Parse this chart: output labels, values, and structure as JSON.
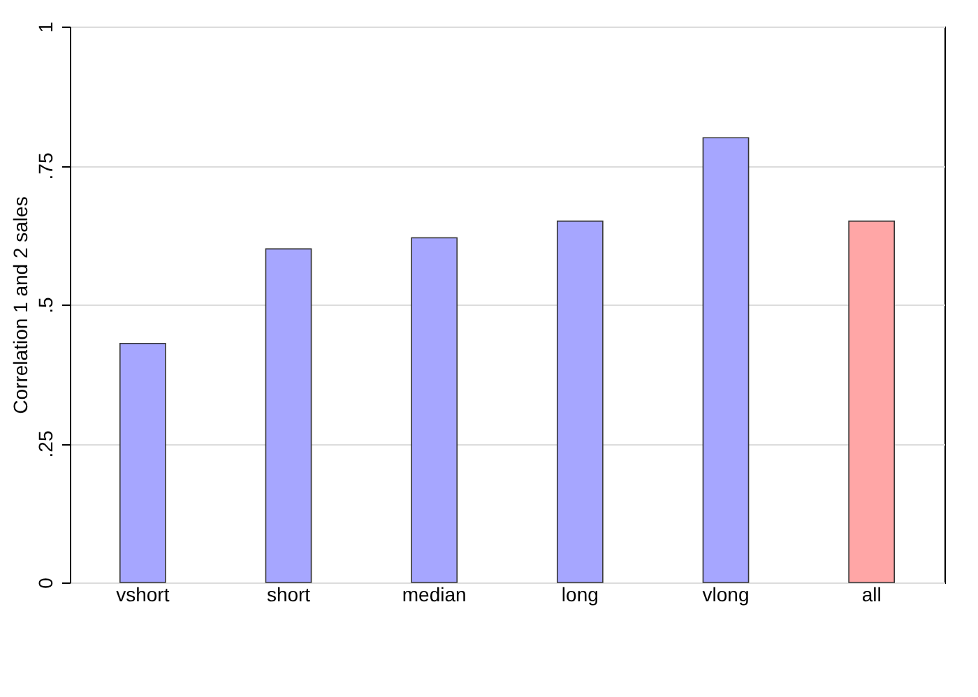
{
  "chart_data": {
    "type": "bar",
    "ylabel": "Correlation 1 and 2 sales",
    "categories": [
      "vshort",
      "short",
      "median",
      "long",
      "vlong",
      "all"
    ],
    "values": [
      0.43,
      0.6,
      0.62,
      0.65,
      0.8,
      0.65
    ],
    "colors": [
      "#a6a6ff",
      "#a6a6ff",
      "#a6a6ff",
      "#a6a6ff",
      "#a6a6ff",
      "#ffa6a6"
    ],
    "ylim": [
      0,
      1
    ],
    "yticks": [
      {
        "value": 0,
        "label": "0"
      },
      {
        "value": 0.25,
        "label": ".25"
      },
      {
        "value": 0.5,
        "label": ".5"
      },
      {
        "value": 0.75,
        "label": ".75"
      },
      {
        "value": 1,
        "label": "1"
      }
    ],
    "grid": "y"
  }
}
